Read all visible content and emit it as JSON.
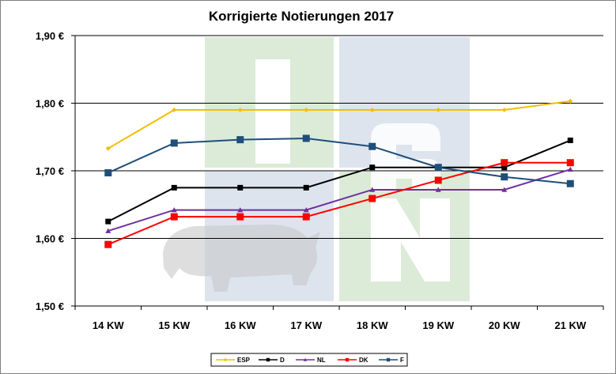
{
  "chart_data": {
    "type": "line",
    "title": "Korrigierte Notierungen 2017",
    "xlabel": "",
    "ylabel": "",
    "categories": [
      "14 KW",
      "15 KW",
      "16 KW",
      "17 KW",
      "18 KW",
      "19 KW",
      "20 KW",
      "21 KW"
    ],
    "y_tick_labels": [
      "1,50 €",
      "1,60 €",
      "1,70 €",
      "1,80 €",
      "1,90 €"
    ],
    "y_ticks": [
      1.5,
      1.6,
      1.7,
      1.8,
      1.9
    ],
    "ylim": [
      1.5,
      1.9
    ],
    "grid": "horizontal major gridlines",
    "legend_position": "bottom",
    "watermark": "ISN",
    "series": [
      {
        "name": "ESP",
        "color": "#f0c000",
        "marker": "diamond",
        "values": [
          1.733,
          1.79,
          1.79,
          1.79,
          1.79,
          1.79,
          1.79,
          1.803
        ]
      },
      {
        "name": "D",
        "color": "#000000",
        "marker": "square",
        "values": [
          1.625,
          1.675,
          1.675,
          1.675,
          1.705,
          1.705,
          1.705,
          1.745
        ]
      },
      {
        "name": "NL",
        "color": "#7030a0",
        "marker": "triangle",
        "values": [
          1.611,
          1.642,
          1.642,
          1.642,
          1.672,
          1.672,
          1.672,
          1.702
        ]
      },
      {
        "name": "DK",
        "color": "#ff0000",
        "marker": "square",
        "values": [
          1.591,
          1.632,
          1.632,
          1.632,
          1.659,
          1.686,
          1.712,
          1.712
        ]
      },
      {
        "name": "F",
        "color": "#1f4e79",
        "marker": "square",
        "values": [
          1.697,
          1.741,
          1.746,
          1.748,
          1.736,
          1.705,
          1.691,
          1.681
        ]
      }
    ]
  }
}
